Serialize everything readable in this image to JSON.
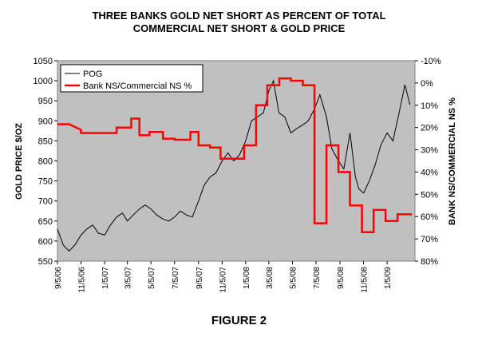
{
  "title_line1": "THREE BANKS GOLD NET SHORT AS PERCENT OF TOTAL",
  "title_line2": "COMMERCIAL NET SHORT & GOLD PRICE",
  "figure_label": "FIGURE 2",
  "colors": {
    "plot_bg": "#c0c0c0",
    "pog_line": "#000000",
    "bank_line": "#ff0000"
  },
  "chart_data": {
    "type": "line",
    "title": "THREE BANKS GOLD NET SHORT AS PERCENT OF TOTAL COMMERCIAL NET SHORT & GOLD PRICE",
    "ylabel": "GOLD PRICE $/OZ",
    "y2label": "BANK NS/COMMERCIAL NS %",
    "ylim": [
      550,
      1050
    ],
    "y2lim": [
      -10,
      80
    ],
    "y2_inverted": true,
    "y_ticks": [
      "550",
      "600",
      "650",
      "700",
      "750",
      "800",
      "850",
      "900",
      "950",
      "1000",
      "1050"
    ],
    "y2_ticks": [
      "-10%",
      "0%",
      "10%",
      "20%",
      "30%",
      "40%",
      "50%",
      "60%",
      "70%",
      "80%"
    ],
    "x_ticks": [
      "9/5/06",
      "11/5/06",
      "1/5/07",
      "3/5/07",
      "5/5/07",
      "7/5/07",
      "9/5/07",
      "11/5/07",
      "1/5/08",
      "3/5/08",
      "5/5/08",
      "7/5/08",
      "9/5/08",
      "11/5/08",
      "1/5/09"
    ],
    "grid": false,
    "legend_position": "top-left",
    "series": [
      {
        "name": "POG",
        "axis": "left",
        "x": [
          "2006-09-05",
          "2006-09-20",
          "2006-10-05",
          "2006-10-20",
          "2006-11-05",
          "2006-11-20",
          "2006-12-05",
          "2006-12-20",
          "2007-01-05",
          "2007-01-20",
          "2007-02-05",
          "2007-02-20",
          "2007-03-05",
          "2007-03-20",
          "2007-04-05",
          "2007-04-20",
          "2007-05-05",
          "2007-05-20",
          "2007-06-05",
          "2007-06-20",
          "2007-07-05",
          "2007-07-20",
          "2007-08-05",
          "2007-08-20",
          "2007-09-05",
          "2007-09-20",
          "2007-10-05",
          "2007-10-20",
          "2007-11-05",
          "2007-11-20",
          "2007-12-05",
          "2007-12-20",
          "2008-01-05",
          "2008-01-20",
          "2008-02-05",
          "2008-02-20",
          "2008-03-05",
          "2008-03-17",
          "2008-03-31",
          "2008-04-15",
          "2008-05-01",
          "2008-05-15",
          "2008-06-01",
          "2008-06-15",
          "2008-07-01",
          "2008-07-15",
          "2008-08-01",
          "2008-08-15",
          "2008-09-01",
          "2008-09-15",
          "2008-10-01",
          "2008-10-15",
          "2008-10-24",
          "2008-11-05",
          "2008-11-20",
          "2008-12-05",
          "2008-12-20",
          "2009-01-05",
          "2009-01-20",
          "2009-02-05",
          "2009-02-20",
          "2009-03-05"
        ],
        "values": [
          630,
          590,
          575,
          590,
          615,
          630,
          640,
          620,
          615,
          640,
          660,
          670,
          650,
          665,
          680,
          690,
          680,
          665,
          655,
          650,
          660,
          675,
          665,
          660,
          700,
          740,
          760,
          770,
          800,
          820,
          800,
          815,
          850,
          900,
          910,
          920,
          975,
          1000,
          920,
          910,
          870,
          880,
          890,
          900,
          930,
          965,
          910,
          830,
          800,
          780,
          870,
          760,
          730,
          720,
          750,
          790,
          840,
          870,
          850,
          920,
          990,
          940
        ]
      },
      {
        "name": "Bank NS/Commercial NS %",
        "axis": "right",
        "x": [
          "2006-09-05",
          "2006-10-05",
          "2006-11-05",
          "2006-11-05",
          "2007-02-05",
          "2007-02-05",
          "2007-03-15",
          "2007-03-15",
          "2007-04-05",
          "2007-04-05",
          "2007-05-01",
          "2007-05-01",
          "2007-06-05",
          "2007-06-05",
          "2007-07-05",
          "2007-07-05",
          "2007-08-15",
          "2007-08-15",
          "2007-09-05",
          "2007-09-05",
          "2007-10-05",
          "2007-10-05",
          "2007-11-01",
          "2007-11-01",
          "2008-01-01",
          "2008-01-01",
          "2008-02-01",
          "2008-02-01",
          "2008-03-01",
          "2008-03-01",
          "2008-04-01",
          "2008-04-01",
          "2008-05-01",
          "2008-05-01",
          "2008-06-01",
          "2008-06-01",
          "2008-07-01",
          "2008-07-01",
          "2008-08-01",
          "2008-08-01",
          "2008-09-01",
          "2008-09-01",
          "2008-10-01",
          "2008-10-01",
          "2008-11-01",
          "2008-11-01",
          "2008-12-01",
          "2008-12-01",
          "2009-01-01",
          "2009-01-01",
          "2009-02-01",
          "2009-02-01",
          "2009-03-10"
        ],
        "values": [
          18.5,
          18.5,
          21,
          22.5,
          22.5,
          20,
          20,
          16,
          16,
          23.5,
          23.5,
          22,
          22,
          25,
          25,
          25.5,
          25.5,
          22,
          22,
          28,
          28,
          29,
          29,
          34,
          34,
          28,
          28,
          10,
          10,
          1,
          1,
          -2,
          -2,
          -1,
          -1,
          1,
          1,
          63,
          63,
          28,
          28,
          40,
          40,
          55,
          55,
          67,
          67,
          57,
          57,
          62,
          62,
          59,
          59
        ]
      }
    ]
  }
}
